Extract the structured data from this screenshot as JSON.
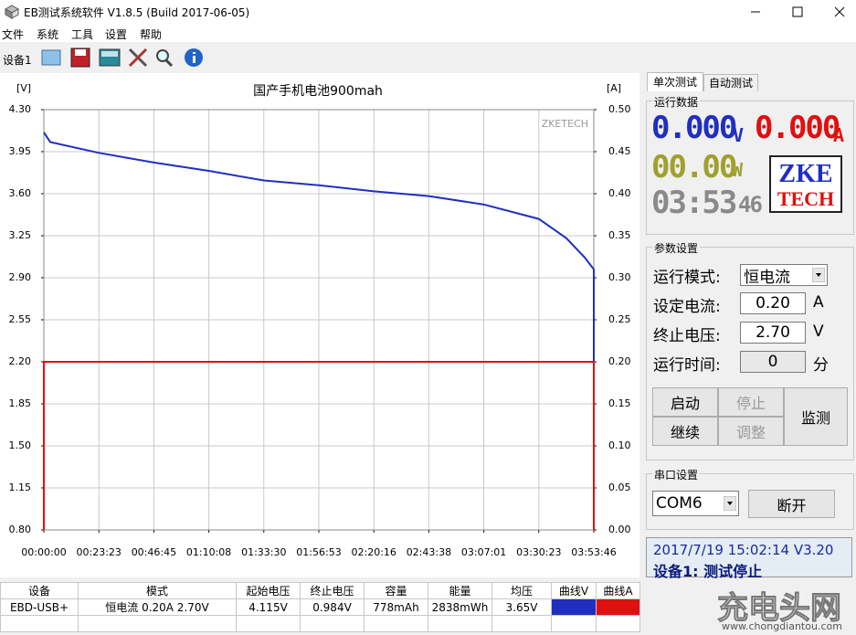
{
  "window": {
    "title": "EB测试系统软件 V1.8.5 (Build 2017-06-05)"
  },
  "menu": [
    "文件",
    "系统",
    "工具",
    "设置",
    "帮助"
  ],
  "toolbar": {
    "device": "设备1"
  },
  "chart_data": {
    "type": "line",
    "title": "国产手机电池900mah",
    "y_label": "[V]",
    "y2_label": "[A]",
    "watermark": "ZKETECH",
    "grid": true,
    "xlim": [
      0,
      14026
    ],
    "xticks": [
      {
        "value": 0,
        "label": "00:00:00"
      },
      {
        "value": 1403,
        "label": "00:23:23"
      },
      {
        "value": 2805,
        "label": "00:46:45"
      },
      {
        "value": 4208,
        "label": "01:10:08"
      },
      {
        "value": 5610,
        "label": "01:33:30"
      },
      {
        "value": 7013,
        "label": "01:56:53"
      },
      {
        "value": 8416,
        "label": "02:20:16"
      },
      {
        "value": 9818,
        "label": "02:43:38"
      },
      {
        "value": 11221,
        "label": "03:07:01"
      },
      {
        "value": 12623,
        "label": "03:30:23"
      },
      {
        "value": 14026,
        "label": "03:53:46"
      }
    ],
    "ylim": [
      0.8,
      4.3
    ],
    "yticks": [
      {
        "value": 0.8,
        "label": "0.80"
      },
      1.15,
      {
        "value": 1.5,
        "label": "1.50"
      },
      1.85,
      {
        "value": 2.2,
        "label": "2.20"
      },
      2.55,
      {
        "value": 2.9,
        "label": "2.90"
      },
      3.25,
      {
        "value": 3.6,
        "label": "3.60"
      },
      3.95,
      {
        "value": 4.3,
        "label": "4.30"
      }
    ],
    "y2lim": [
      0,
      0.5
    ],
    "y2ticks": [
      {
        "value": 0,
        "label": "0.00"
      },
      0.05,
      {
        "value": 0.1,
        "label": "0.10"
      },
      0.15,
      {
        "value": 0.2,
        "label": "0.20"
      },
      0.25,
      {
        "value": 0.3,
        "label": "0.30"
      },
      0.35,
      {
        "value": 0.4,
        "label": "0.40"
      },
      0.45,
      {
        "value": 0.5,
        "label": "0.50"
      }
    ],
    "series": [
      {
        "color": "#1f2fc0",
        "x": [
          0,
          163,
          1403,
          2805,
          4208,
          5610,
          7013,
          8416,
          9818,
          11221,
          12623,
          13325,
          13791,
          14026,
          14026
        ],
        "values": [
          4.11,
          4.03,
          3.94,
          3.86,
          3.79,
          3.71,
          3.67,
          3.62,
          3.58,
          3.51,
          3.39,
          3.23,
          3.07,
          2.97,
          0.984
        ]
      },
      {
        "color": "#e01010",
        "axis": "y2",
        "x": [
          0,
          0,
          14026,
          14026
        ],
        "values": [
          0,
          0.2,
          0.2,
          0
        ]
      }
    ]
  },
  "tabs": [
    "单次测试",
    "自动测试"
  ],
  "run_data": {
    "label": "运行数据",
    "voltage": "0.000",
    "voltage_unit": "V",
    "current": "0.000",
    "current_unit": "A",
    "power": "00.00",
    "power_unit": "W",
    "time": "03:53",
    "time_sec": "46",
    "logo_top": "ZKE",
    "logo_bottom": "TECH"
  },
  "params": {
    "label": "参数设置",
    "rows": [
      {
        "label": "运行模式:",
        "value": "恒电流"
      },
      {
        "label": "设定电流:",
        "value": "0.20",
        "unit": "A"
      },
      {
        "label": "终止电压:",
        "value": "2.70",
        "unit": "V"
      },
      {
        "label": "运行时间:",
        "value": "0",
        "unit": "分"
      }
    ],
    "buttons": [
      "启动",
      "停止",
      "继续",
      "调整",
      "监测"
    ]
  },
  "serial": {
    "label": "串口设置",
    "port": "COM6",
    "button": "断开"
  },
  "status": {
    "line1": "2017/7/19 15:02:14  V3.20",
    "line2": "设备1: 测试停止"
  },
  "table": {
    "headers": [
      "设备",
      "模式",
      "起始电压",
      "终止电压",
      "容量",
      "能量",
      "均压",
      "曲线V",
      "曲线A"
    ],
    "rows": [
      [
        "EBD-USB+",
        "恒电流  0.20A  2.70V",
        "4.115V",
        "0.984V",
        "778mAh",
        "2838mWh",
        "3.65V"
      ]
    ]
  },
  "watermark": {
    "name": "充电头网",
    "url": "www.chongdiantou.com"
  }
}
